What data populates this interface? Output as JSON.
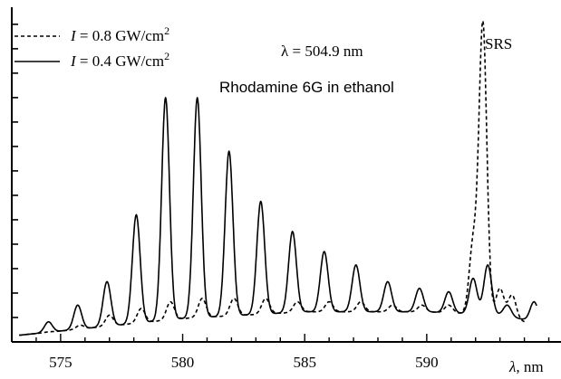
{
  "chart_data": {
    "type": "line",
    "x_axis": {
      "label_symbol": "λ",
      "label_unit": ", nm",
      "xlim": [
        573.0,
        595.5
      ],
      "ticks": [
        575,
        580,
        585,
        590
      ],
      "tick_labels": [
        "575",
        "580",
        "585",
        "590"
      ]
    },
    "y_axis": {
      "label": "",
      "ylim": [
        0,
        1.0
      ],
      "ticks": [
        0.0,
        0.073,
        0.146,
        0.219,
        0.292,
        0.365,
        0.438,
        0.511,
        0.584,
        0.657,
        0.73,
        0.803,
        0.876,
        0.949
      ],
      "tick_labels": []
    },
    "legend": {
      "placement": "top-left",
      "entries": [
        {
          "symbol": "I",
          "text": " = 0.8 GW/cm",
          "sup": "2",
          "style": "dashed"
        },
        {
          "symbol": "I",
          "text": " = 0.4 GW/cm",
          "sup": "2",
          "style": "solid"
        }
      ]
    },
    "annotations": {
      "wavelength": "λ = 504.9 nm",
      "sample": "Rhodamine 6G in ethanol",
      "srs": "SRS"
    },
    "series": [
      {
        "name": "I = 0.4 GW/cm2",
        "style": "solid",
        "peaks": [
          [
            574.5,
            0.06
          ],
          [
            575.7,
            0.11
          ],
          [
            576.9,
            0.18
          ],
          [
            578.1,
            0.38
          ],
          [
            579.3,
            0.73
          ],
          [
            580.6,
            0.73
          ],
          [
            581.9,
            0.57
          ],
          [
            583.2,
            0.42
          ],
          [
            584.5,
            0.33
          ],
          [
            585.8,
            0.27
          ],
          [
            587.1,
            0.23
          ],
          [
            588.4,
            0.18
          ],
          [
            589.7,
            0.16
          ],
          [
            590.9,
            0.15
          ],
          [
            591.9,
            0.19
          ],
          [
            592.5,
            0.23
          ],
          [
            593.3,
            0.11
          ],
          [
            594.4,
            0.12
          ]
        ],
        "baseline": [
          [
            573.3,
            0.02
          ],
          [
            576.0,
            0.04
          ],
          [
            580.0,
            0.07
          ],
          [
            585.0,
            0.09
          ],
          [
            590.0,
            0.09
          ],
          [
            593.0,
            0.08
          ],
          [
            594.5,
            0.06
          ]
        ]
      },
      {
        "name": "I = 0.8 GW/cm2",
        "style": "dashed",
        "peaks": [
          [
            574.5,
            0.03
          ],
          [
            575.8,
            0.05
          ],
          [
            577.0,
            0.08
          ],
          [
            578.3,
            0.1
          ],
          [
            579.5,
            0.12
          ],
          [
            580.8,
            0.13
          ],
          [
            582.1,
            0.13
          ],
          [
            583.4,
            0.13
          ],
          [
            584.7,
            0.12
          ],
          [
            586.0,
            0.12
          ],
          [
            587.3,
            0.12
          ],
          [
            588.6,
            0.11
          ],
          [
            589.8,
            0.11
          ],
          [
            590.9,
            0.11
          ],
          [
            591.9,
            0.29
          ],
          [
            592.3,
            0.95
          ],
          [
            593.0,
            0.16
          ],
          [
            593.5,
            0.14
          ]
        ],
        "baseline": [
          [
            573.3,
            0.02
          ],
          [
            576.0,
            0.04
          ],
          [
            580.0,
            0.07
          ],
          [
            585.0,
            0.09
          ],
          [
            590.0,
            0.09
          ],
          [
            593.0,
            0.08
          ],
          [
            594.0,
            0.06
          ]
        ]
      }
    ]
  }
}
